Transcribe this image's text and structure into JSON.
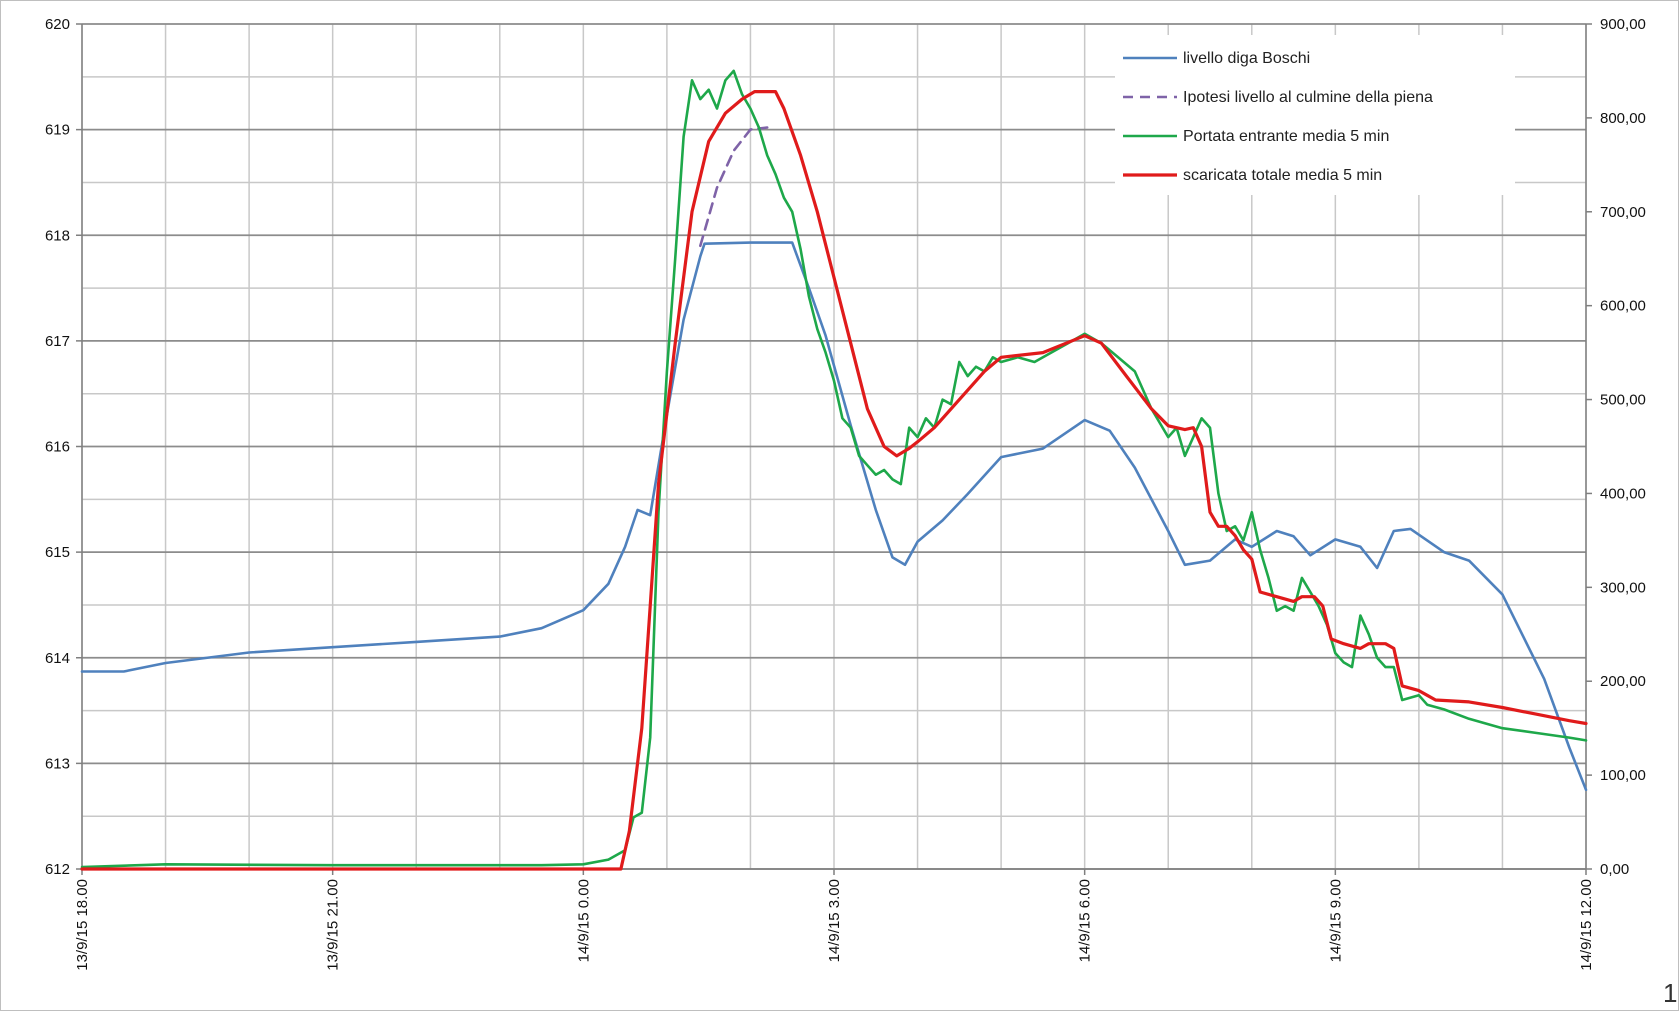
{
  "chart_data": {
    "type": "line",
    "title": "",
    "xlabel": "",
    "ylabel_left": "",
    "ylabel_right": "",
    "x_unit": "hours since 13/9/15 18.00",
    "x_range": [
      0,
      18
    ],
    "x_tick_labels": [
      {
        "x": 0,
        "label": "13/9/15 18.00"
      },
      {
        "x": 3,
        "label": "13/9/15 21.00"
      },
      {
        "x": 6,
        "label": "14/9/15 0.00"
      },
      {
        "x": 9,
        "label": "14/9/15 3.00"
      },
      {
        "x": 12,
        "label": "14/9/15 6.00"
      },
      {
        "x": 15,
        "label": "14/9/15 9.00"
      },
      {
        "x": 18,
        "label": "14/9/15 12.00"
      }
    ],
    "y_left": {
      "min": 612,
      "max": 620,
      "ticks": [
        "612",
        "613",
        "614",
        "615",
        "616",
        "617",
        "618",
        "619",
        "620"
      ]
    },
    "y_right": {
      "min": 0,
      "max": 900,
      "ticks": [
        "0,00",
        "100,00",
        "200,00",
        "300,00",
        "400,00",
        "500,00",
        "600,00",
        "700,00",
        "800,00",
        "900,00"
      ]
    },
    "grid": true,
    "legend_position": "top-right",
    "series": [
      {
        "name": "livello diga Boschi",
        "axis": "left",
        "color": "#4f81bd",
        "dash": false,
        "points": [
          [
            0,
            613.87
          ],
          [
            0.5,
            613.87
          ],
          [
            1,
            613.95
          ],
          [
            2,
            614.05
          ],
          [
            3,
            614.1
          ],
          [
            4,
            614.15
          ],
          [
            5,
            614.2
          ],
          [
            5.5,
            614.28
          ],
          [
            6,
            614.45
          ],
          [
            6.3,
            614.7
          ],
          [
            6.5,
            615.05
          ],
          [
            6.65,
            615.4
          ],
          [
            6.8,
            615.35
          ],
          [
            7,
            616.3
          ],
          [
            7.2,
            617.2
          ],
          [
            7.4,
            617.8
          ],
          [
            7.45,
            617.92
          ],
          [
            8,
            617.93
          ],
          [
            8.5,
            617.93
          ],
          [
            8.7,
            617.5
          ],
          [
            8.9,
            617.05
          ],
          [
            9.2,
            616.2
          ],
          [
            9.5,
            615.4
          ],
          [
            9.7,
            614.95
          ],
          [
            9.85,
            614.88
          ],
          [
            10,
            615.1
          ],
          [
            10.3,
            615.3
          ],
          [
            10.6,
            615.55
          ],
          [
            11,
            615.9
          ],
          [
            11.5,
            615.98
          ],
          [
            12,
            616.25
          ],
          [
            12.3,
            616.15
          ],
          [
            12.6,
            615.8
          ],
          [
            13,
            615.2
          ],
          [
            13.2,
            614.88
          ],
          [
            13.5,
            614.92
          ],
          [
            13.8,
            615.12
          ],
          [
            14,
            615.05
          ],
          [
            14.3,
            615.2
          ],
          [
            14.5,
            615.15
          ],
          [
            14.7,
            614.97
          ],
          [
            15,
            615.12
          ],
          [
            15.3,
            615.05
          ],
          [
            15.5,
            614.85
          ],
          [
            15.7,
            615.2
          ],
          [
            15.9,
            615.22
          ],
          [
            16.3,
            615.0
          ],
          [
            16.6,
            614.92
          ],
          [
            17,
            614.6
          ],
          [
            17.5,
            613.8
          ],
          [
            17.8,
            613.15
          ],
          [
            18,
            612.75
          ]
        ]
      },
      {
        "name": "Ipotesi livello al culmine della piena",
        "axis": "left",
        "color": "#7f63a8",
        "dash": true,
        "points": [
          [
            7.4,
            617.9
          ],
          [
            7.6,
            618.45
          ],
          [
            7.8,
            618.8
          ],
          [
            8,
            619.0
          ],
          [
            8.2,
            619.02
          ]
        ]
      },
      {
        "name": "Portata entrante media 5 min",
        "axis": "right",
        "color": "#1ea84a",
        "dash": false,
        "points": [
          [
            0,
            2
          ],
          [
            1,
            5
          ],
          [
            3,
            4
          ],
          [
            5.5,
            4
          ],
          [
            6,
            5
          ],
          [
            6.3,
            10
          ],
          [
            6.5,
            20
          ],
          [
            6.6,
            55
          ],
          [
            6.7,
            60
          ],
          [
            6.8,
            140
          ],
          [
            6.9,
            380
          ],
          [
            7,
            530
          ],
          [
            7.1,
            650
          ],
          [
            7.2,
            780
          ],
          [
            7.3,
            840
          ],
          [
            7.4,
            820
          ],
          [
            7.5,
            830
          ],
          [
            7.6,
            810
          ],
          [
            7.7,
            840
          ],
          [
            7.8,
            850
          ],
          [
            7.9,
            825
          ],
          [
            8,
            810
          ],
          [
            8.1,
            790
          ],
          [
            8.2,
            760
          ],
          [
            8.3,
            740
          ],
          [
            8.4,
            715
          ],
          [
            8.5,
            700
          ],
          [
            8.6,
            660
          ],
          [
            8.7,
            610
          ],
          [
            8.8,
            575
          ],
          [
            8.9,
            550
          ],
          [
            9,
            520
          ],
          [
            9.1,
            480
          ],
          [
            9.2,
            470
          ],
          [
            9.3,
            440
          ],
          [
            9.4,
            430
          ],
          [
            9.5,
            420
          ],
          [
            9.6,
            425
          ],
          [
            9.7,
            415
          ],
          [
            9.8,
            410
          ],
          [
            9.9,
            470
          ],
          [
            10,
            460
          ],
          [
            10.1,
            480
          ],
          [
            10.2,
            470
          ],
          [
            10.3,
            500
          ],
          [
            10.4,
            495
          ],
          [
            10.5,
            540
          ],
          [
            10.6,
            525
          ],
          [
            10.7,
            535
          ],
          [
            10.8,
            530
          ],
          [
            10.9,
            545
          ],
          [
            11,
            540
          ],
          [
            11.2,
            545
          ],
          [
            11.4,
            540
          ],
          [
            11.6,
            550
          ],
          [
            11.8,
            560
          ],
          [
            12,
            570
          ],
          [
            12.2,
            560
          ],
          [
            12.4,
            545
          ],
          [
            12.6,
            530
          ],
          [
            12.8,
            490
          ],
          [
            13,
            460
          ],
          [
            13.1,
            470
          ],
          [
            13.2,
            440
          ],
          [
            13.3,
            460
          ],
          [
            13.4,
            480
          ],
          [
            13.5,
            470
          ],
          [
            13.6,
            400
          ],
          [
            13.7,
            360
          ],
          [
            13.8,
            365
          ],
          [
            13.9,
            350
          ],
          [
            14,
            380
          ],
          [
            14.1,
            340
          ],
          [
            14.2,
            310
          ],
          [
            14.3,
            275
          ],
          [
            14.4,
            280
          ],
          [
            14.5,
            275
          ],
          [
            14.6,
            310
          ],
          [
            14.7,
            295
          ],
          [
            14.8,
            280
          ],
          [
            14.9,
            260
          ],
          [
            15,
            230
          ],
          [
            15.1,
            220
          ],
          [
            15.2,
            215
          ],
          [
            15.3,
            270
          ],
          [
            15.4,
            250
          ],
          [
            15.5,
            225
          ],
          [
            15.6,
            215
          ],
          [
            15.7,
            215
          ],
          [
            15.8,
            180
          ],
          [
            16,
            185
          ],
          [
            16.1,
            175
          ],
          [
            16.3,
            170
          ],
          [
            16.6,
            160
          ],
          [
            17,
            150
          ],
          [
            17.4,
            145
          ],
          [
            17.8,
            140
          ],
          [
            18,
            137
          ]
        ]
      },
      {
        "name": "scaricata totale media 5 min",
        "axis": "right",
        "color": "#e01b1b",
        "dash": false,
        "points": [
          [
            0,
            0
          ],
          [
            6.45,
            0
          ],
          [
            6.55,
            40
          ],
          [
            6.7,
            150
          ],
          [
            6.8,
            280
          ],
          [
            6.9,
            410
          ],
          [
            7.1,
            560
          ],
          [
            7.3,
            700
          ],
          [
            7.5,
            775
          ],
          [
            7.7,
            805
          ],
          [
            7.9,
            820
          ],
          [
            8.05,
            828
          ],
          [
            8.3,
            828
          ],
          [
            8.4,
            810
          ],
          [
            8.6,
            760
          ],
          [
            8.8,
            700
          ],
          [
            9,
            630
          ],
          [
            9.2,
            560
          ],
          [
            9.4,
            490
          ],
          [
            9.6,
            450
          ],
          [
            9.75,
            440
          ],
          [
            9.9,
            448
          ],
          [
            10,
            455
          ],
          [
            10.2,
            470
          ],
          [
            10.4,
            490
          ],
          [
            10.6,
            510
          ],
          [
            10.8,
            530
          ],
          [
            11,
            545
          ],
          [
            11.5,
            550
          ],
          [
            12,
            568
          ],
          [
            12.2,
            560
          ],
          [
            12.5,
            525
          ],
          [
            12.8,
            490
          ],
          [
            13,
            472
          ],
          [
            13.2,
            468
          ],
          [
            13.3,
            470
          ],
          [
            13.4,
            450
          ],
          [
            13.5,
            380
          ],
          [
            13.6,
            365
          ],
          [
            13.7,
            365
          ],
          [
            13.8,
            355
          ],
          [
            13.9,
            340
          ],
          [
            14,
            330
          ],
          [
            14.1,
            295
          ],
          [
            14.3,
            290
          ],
          [
            14.5,
            285
          ],
          [
            14.6,
            290
          ],
          [
            14.75,
            290
          ],
          [
            14.85,
            280
          ],
          [
            14.95,
            245
          ],
          [
            15.1,
            240
          ],
          [
            15.3,
            235
          ],
          [
            15.4,
            240
          ],
          [
            15.6,
            240
          ],
          [
            15.7,
            235
          ],
          [
            15.8,
            195
          ],
          [
            16,
            190
          ],
          [
            16.1,
            185
          ],
          [
            16.2,
            180
          ],
          [
            16.6,
            178
          ],
          [
            17,
            172
          ],
          [
            17.4,
            165
          ],
          [
            17.8,
            158
          ],
          [
            18,
            155
          ]
        ]
      }
    ]
  },
  "page_marker": "1"
}
